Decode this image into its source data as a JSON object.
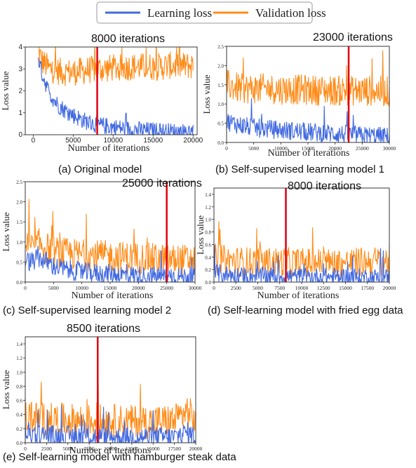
{
  "legend": {
    "learning_label": "Learning loss",
    "validation_label": "Validation loss"
  },
  "colors": {
    "learning": "#4169e1",
    "validation": "#ff8c1a",
    "marker": "#e0000f",
    "legend_border": "#9a9a9a"
  },
  "chart_data": [
    {
      "type": "line",
      "caption": "(a) Original model",
      "annotation": "8000 iterations",
      "marker_x": 8000,
      "xlabel": "Number of iterations",
      "ylabel": "Loss value",
      "xlim": [
        -1000,
        20500
      ],
      "ylim": [
        0,
        4
      ],
      "xticks": [
        0,
        5000,
        10000,
        15000,
        20000
      ],
      "yticks": [
        0,
        1,
        2,
        3,
        4
      ],
      "xtick_labels": [
        "0",
        "5000",
        "10000",
        "15000",
        "20000"
      ],
      "ytick_labels": [
        "0",
        "1",
        "2",
        "3",
        "4"
      ],
      "series": [
        {
          "name": "Learning loss",
          "x": [
            600,
            1000,
            2000,
            3000,
            4000,
            5000,
            6000,
            7000,
            8000,
            9000,
            10000,
            11000,
            12000,
            13000,
            14000,
            15000,
            16000,
            17000,
            18000,
            19000,
            20000
          ],
          "values": [
            3.6,
            2.9,
            1.9,
            1.4,
            1.1,
            0.9,
            0.7,
            0.55,
            0.45,
            0.4,
            0.35,
            0.3,
            0.25,
            0.22,
            0.2,
            0.18,
            0.16,
            0.15,
            0.14,
            0.12,
            0.1
          ]
        },
        {
          "name": "Validation loss",
          "x": [
            600,
            1000,
            2000,
            3000,
            4000,
            5000,
            6000,
            7000,
            8000,
            9000,
            10000,
            11000,
            12000,
            13000,
            14000,
            15000,
            16000,
            17000,
            18000,
            19000,
            20000
          ],
          "values": [
            4.0,
            3.4,
            3.0,
            2.9,
            2.85,
            2.85,
            2.9,
            2.95,
            3.0,
            3.0,
            3.05,
            3.05,
            3.1,
            3.1,
            3.1,
            3.1,
            3.1,
            3.15,
            3.15,
            3.15,
            3.15
          ]
        }
      ]
    },
    {
      "type": "line",
      "caption": "(b) Self-supervised learning model 1",
      "annotation": "23000 iterations",
      "marker_x": 22500,
      "xlabel": "Number of iterations",
      "ylabel": "Loss value",
      "xlim": [
        0,
        30000
      ],
      "ylim": [
        0,
        2.5
      ],
      "xticks": [
        0,
        5000,
        10000,
        15000,
        20000,
        25000,
        30000
      ],
      "yticks": [
        0,
        0.5,
        1.0,
        1.5,
        2.0,
        2.5
      ],
      "xtick_labels": [
        "0",
        "5000",
        "10000",
        "15000",
        "20000",
        "25000",
        "30000"
      ],
      "ytick_labels": [
        "0.0",
        "0.5",
        "1.0",
        "1.5",
        "2.0",
        "2.5"
      ],
      "series": [
        {
          "name": "Learning loss",
          "x": [
            0,
            2500,
            5000,
            7500,
            10000,
            12500,
            15000,
            17500,
            20000,
            22500,
            25000,
            27500,
            30000
          ],
          "values": [
            0.55,
            0.45,
            0.38,
            0.35,
            0.32,
            0.3,
            0.27,
            0.25,
            0.23,
            0.2,
            0.18,
            0.17,
            0.15
          ]
        },
        {
          "name": "Validation loss",
          "x": [
            0,
            2500,
            5000,
            7500,
            10000,
            12500,
            15000,
            17500,
            20000,
            22500,
            25000,
            27500,
            30000
          ],
          "values": [
            1.5,
            1.4,
            1.4,
            1.4,
            1.38,
            1.38,
            1.36,
            1.36,
            1.35,
            1.35,
            1.34,
            1.34,
            1.32
          ]
        }
      ]
    },
    {
      "type": "line",
      "caption": "(c) Self-supervised learning model 2",
      "annotation": "25000 iterations",
      "marker_x": 25000,
      "xlabel": "Number of iterations",
      "ylabel": "Loss value",
      "xlim": [
        0,
        30000
      ],
      "ylim": [
        0,
        2.5
      ],
      "xticks": [
        0,
        5000,
        10000,
        15000,
        20000,
        25000,
        30000
      ],
      "yticks": [
        0,
        0.5,
        1.0,
        1.5,
        2.0,
        2.5
      ],
      "xtick_labels": [
        "0",
        "5000",
        "10000",
        "15000",
        "20000",
        "25000",
        "30000"
      ],
      "ytick_labels": [
        "0.0",
        "0.5",
        "1.0",
        "1.5",
        "2.0",
        "2.5"
      ],
      "series": [
        {
          "name": "Learning loss",
          "x": [
            0,
            1000,
            2500,
            5000,
            7500,
            10000,
            12500,
            15000,
            17500,
            20000,
            22500,
            25000,
            27500,
            30000
          ],
          "values": [
            0.55,
            0.5,
            0.6,
            0.4,
            0.3,
            0.25,
            0.22,
            0.2,
            0.18,
            0.16,
            0.15,
            0.14,
            0.13,
            0.12
          ]
        },
        {
          "name": "Validation loss",
          "x": [
            0,
            1000,
            2500,
            5000,
            7500,
            10000,
            12500,
            15000,
            17500,
            20000,
            22500,
            25000,
            27500,
            30000
          ],
          "values": [
            0.95,
            0.85,
            0.95,
            0.75,
            0.7,
            0.68,
            0.66,
            0.64,
            0.62,
            0.6,
            0.58,
            0.56,
            0.55,
            0.55
          ]
        }
      ]
    },
    {
      "type": "line",
      "caption": "(d) Self-learning model with fried egg data",
      "annotation": "8000 iterations",
      "marker_x": 8200,
      "xlabel": "Number of iterations",
      "ylabel": "Loss value",
      "xlim": [
        0,
        20000
      ],
      "ylim": [
        0,
        1.5
      ],
      "xticks": [
        0,
        2500,
        5000,
        7500,
        10000,
        12500,
        15000,
        17500,
        20000
      ],
      "yticks": [
        0,
        0.2,
        0.4,
        0.6,
        0.8,
        1.0,
        1.2,
        1.4
      ],
      "xtick_labels": [
        "0",
        "2500",
        "5000",
        "7500",
        "10000",
        "12500",
        "15000",
        "17500",
        "20000"
      ],
      "ytick_labels": [
        "0.0",
        "0.2",
        "0.4",
        "0.6",
        "0.8",
        "1.0",
        "1.2",
        "1.4"
      ],
      "series": [
        {
          "name": "Learning loss",
          "x": [
            0,
            2500,
            5000,
            7500,
            10000,
            12500,
            15000,
            17500,
            20000
          ],
          "values": [
            0.15,
            0.1,
            0.09,
            0.09,
            0.08,
            0.08,
            0.08,
            0.07,
            0.07
          ]
        },
        {
          "name": "Validation loss",
          "x": [
            0,
            2500,
            5000,
            7500,
            10000,
            12500,
            15000,
            17500,
            20000
          ],
          "values": [
            0.38,
            0.33,
            0.32,
            0.32,
            0.31,
            0.31,
            0.3,
            0.33,
            0.34
          ]
        }
      ]
    },
    {
      "type": "line",
      "caption": "(e) Self-learning model with hamburger steak data",
      "annotation": "8500 iterations",
      "marker_x": 8500,
      "xlabel": "Number of iterations",
      "ylabel": "Loss value",
      "xlim": [
        0,
        20000
      ],
      "ylim": [
        0,
        1.5
      ],
      "xticks": [
        0,
        2500,
        5000,
        7500,
        10000,
        12500,
        15000,
        17500,
        20000
      ],
      "yticks": [
        0,
        0.2,
        0.4,
        0.6,
        0.8,
        1.0,
        1.2,
        1.4
      ],
      "xtick_labels": [
        "0",
        "2500",
        "5000",
        "7500",
        "10000",
        "12500",
        "15000",
        "17500",
        "20000"
      ],
      "ytick_labels": [
        "0.0",
        "0.2",
        "0.4",
        "0.6",
        "0.8",
        "1.0",
        "1.2",
        "1.4"
      ],
      "series": [
        {
          "name": "Learning loss",
          "x": [
            0,
            2500,
            5000,
            7500,
            10000,
            12500,
            15000,
            17500,
            19000,
            20000
          ],
          "values": [
            0.15,
            0.1,
            0.09,
            0.09,
            0.08,
            0.08,
            0.08,
            0.08,
            0.15,
            0.08
          ]
        },
        {
          "name": "Validation loss",
          "x": [
            0,
            2500,
            5000,
            7500,
            10000,
            12500,
            15000,
            17500,
            19000,
            20000
          ],
          "values": [
            0.38,
            0.33,
            0.32,
            0.31,
            0.31,
            0.3,
            0.3,
            0.31,
            0.45,
            0.3
          ]
        }
      ]
    }
  ]
}
